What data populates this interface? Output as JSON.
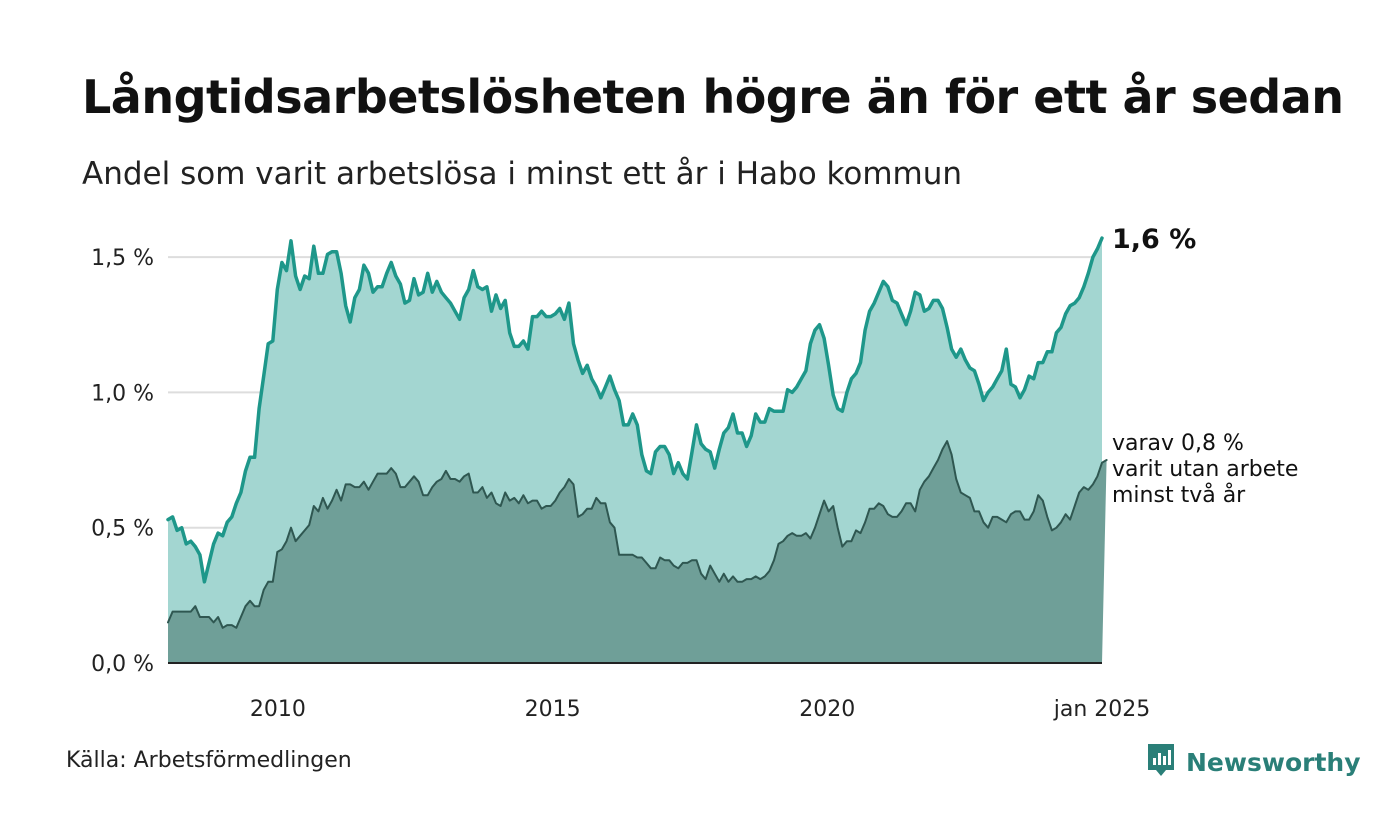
{
  "title": "Långtidsarbetslösheten högre än för ett år sedan",
  "subtitle": "Andel som varit arbetslösa i minst ett år i Habo kommun",
  "source": "Källa: Arbetsförmedlingen",
  "brand": "Newsworthy",
  "colors": {
    "area_main": "#a3d6d1",
    "line_main": "#1e978a",
    "area_sub": "#6f9f98",
    "line_sub": "#2f5751",
    "grid": "#dddddd",
    "brand": "#2a7f78"
  },
  "chart_data": {
    "type": "area",
    "x_start": "2008-01",
    "x_end": "2025-01",
    "x_frequency": "monthly",
    "xticks": [
      {
        "year": 2010,
        "label": "2010"
      },
      {
        "year": 2015,
        "label": "2015"
      },
      {
        "year": 2020,
        "label": "2020"
      },
      {
        "year": 2025,
        "label": "jan 2025"
      }
    ],
    "yticks": [
      {
        "value": 0.0,
        "label": "0,0 %"
      },
      {
        "value": 0.5,
        "label": "0,5 %"
      },
      {
        "value": 1.0,
        "label": "1,0 %"
      },
      {
        "value": 1.5,
        "label": "1,5 %"
      }
    ],
    "ylim": [
      0,
      1.6
    ],
    "grid": true,
    "end_label": "1,6 %",
    "sub_label_lines": [
      "varav 0,8 %",
      "varit utan arbete",
      "minst två år"
    ],
    "series": [
      {
        "values": [
          0.53,
          0.54,
          0.49,
          0.5,
          0.44,
          0.45,
          0.43,
          0.4,
          0.3,
          0.37,
          0.44,
          0.48,
          0.47,
          0.52,
          0.54,
          0.59,
          0.63,
          0.71,
          0.76,
          0.76,
          0.94,
          1.06,
          1.18,
          1.19,
          1.38,
          1.48,
          1.45,
          1.56,
          1.43,
          1.38,
          1.43,
          1.42,
          1.54,
          1.44,
          1.44,
          1.51,
          1.52,
          1.52,
          1.44,
          1.32,
          1.26,
          1.35,
          1.38,
          1.47,
          1.44,
          1.37,
          1.39,
          1.39,
          1.44,
          1.48,
          1.43,
          1.4,
          1.33,
          1.34,
          1.42,
          1.36,
          1.37,
          1.44,
          1.37,
          1.41,
          1.37,
          1.35,
          1.33,
          1.3,
          1.27,
          1.35,
          1.38,
          1.45,
          1.39,
          1.38,
          1.39,
          1.3,
          1.36,
          1.31,
          1.34,
          1.22,
          1.17,
          1.17,
          1.19,
          1.16,
          1.28,
          1.28,
          1.3,
          1.28,
          1.28,
          1.29,
          1.31,
          1.27,
          1.33,
          1.18,
          1.12,
          1.07,
          1.1,
          1.05,
          1.02,
          0.98,
          1.02,
          1.06,
          1.01,
          0.97,
          0.88,
          0.88,
          0.92,
          0.88,
          0.77,
          0.71,
          0.7,
          0.78,
          0.8,
          0.8,
          0.77,
          0.7,
          0.74,
          0.7,
          0.68,
          0.78,
          0.88,
          0.81,
          0.79,
          0.78,
          0.72,
          0.79,
          0.85,
          0.87,
          0.92,
          0.85,
          0.85,
          0.8,
          0.84,
          0.92,
          0.89,
          0.89,
          0.94,
          0.93,
          0.93,
          0.93,
          1.01,
          1.0,
          1.02,
          1.05,
          1.08,
          1.18,
          1.23,
          1.25,
          1.2,
          1.1,
          0.99,
          0.94,
          0.93,
          1.0,
          1.05,
          1.07,
          1.11,
          1.23,
          1.3,
          1.33,
          1.37,
          1.41,
          1.39,
          1.34,
          1.33,
          1.29,
          1.25,
          1.3,
          1.37,
          1.36,
          1.3,
          1.31,
          1.34,
          1.34,
          1.31,
          1.24,
          1.16,
          1.13,
          1.16,
          1.12,
          1.09,
          1.08,
          1.03,
          0.97,
          1.0,
          1.02,
          1.05,
          1.08,
          1.16,
          1.03,
          1.02,
          0.98,
          1.01,
          1.06,
          1.05,
          1.11,
          1.11,
          1.15,
          1.15,
          1.22,
          1.24,
          1.29,
          1.32,
          1.33,
          1.35,
          1.39,
          1.44,
          1.5,
          1.53,
          1.57
        ]
      },
      {
        "values": [
          0.15,
          0.19,
          0.19,
          0.19,
          0.19,
          0.19,
          0.21,
          0.17,
          0.17,
          0.17,
          0.15,
          0.17,
          0.13,
          0.14,
          0.14,
          0.13,
          0.17,
          0.21,
          0.23,
          0.21,
          0.21,
          0.27,
          0.3,
          0.3,
          0.41,
          0.42,
          0.45,
          0.5,
          0.45,
          0.47,
          0.49,
          0.51,
          0.58,
          0.56,
          0.61,
          0.57,
          0.6,
          0.64,
          0.6,
          0.66,
          0.66,
          0.65,
          0.65,
          0.67,
          0.64,
          0.67,
          0.7,
          0.7,
          0.7,
          0.72,
          0.7,
          0.65,
          0.65,
          0.67,
          0.69,
          0.67,
          0.62,
          0.62,
          0.65,
          0.67,
          0.68,
          0.71,
          0.68,
          0.68,
          0.67,
          0.69,
          0.7,
          0.63,
          0.63,
          0.65,
          0.61,
          0.63,
          0.59,
          0.58,
          0.63,
          0.6,
          0.61,
          0.59,
          0.62,
          0.59,
          0.6,
          0.6,
          0.57,
          0.58,
          0.58,
          0.6,
          0.63,
          0.65,
          0.68,
          0.66,
          0.54,
          0.55,
          0.57,
          0.57,
          0.61,
          0.59,
          0.59,
          0.52,
          0.5,
          0.4,
          0.4,
          0.4,
          0.4,
          0.39,
          0.39,
          0.37,
          0.35,
          0.35,
          0.39,
          0.38,
          0.38,
          0.36,
          0.35,
          0.37,
          0.37,
          0.38,
          0.38,
          0.33,
          0.31,
          0.36,
          0.33,
          0.3,
          0.33,
          0.3,
          0.32,
          0.3,
          0.3,
          0.31,
          0.31,
          0.32,
          0.31,
          0.32,
          0.34,
          0.38,
          0.44,
          0.45,
          0.47,
          0.48,
          0.47,
          0.47,
          0.48,
          0.46,
          0.5,
          0.55,
          0.6,
          0.56,
          0.58,
          0.5,
          0.43,
          0.45,
          0.45,
          0.49,
          0.48,
          0.52,
          0.57,
          0.57,
          0.59,
          0.58,
          0.55,
          0.54,
          0.54,
          0.56,
          0.59,
          0.59,
          0.56,
          0.64,
          0.67,
          0.69,
          0.72,
          0.75,
          0.79,
          0.82,
          0.77,
          0.68,
          0.63,
          0.62,
          0.61,
          0.56,
          0.56,
          0.52,
          0.5,
          0.54,
          0.54,
          0.53,
          0.52,
          0.55,
          0.56,
          0.56,
          0.53,
          0.53,
          0.56,
          0.62,
          0.6,
          0.54,
          0.49,
          0.5,
          0.52,
          0.55,
          0.53,
          0.58,
          0.63,
          0.65,
          0.64,
          0.66,
          0.69,
          0.74,
          0.75
        ]
      }
    ]
  }
}
